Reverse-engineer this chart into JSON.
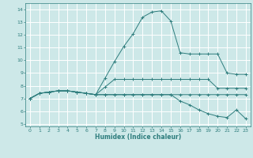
{
  "xlabel": "Humidex (Indice chaleur)",
  "bg_color": "#cde8e8",
  "grid_color": "#ffffff",
  "line_color": "#2e7d7d",
  "xlim": [
    -0.5,
    23.5
  ],
  "ylim": [
    4.8,
    14.5
  ],
  "yticks": [
    5,
    6,
    7,
    8,
    9,
    10,
    11,
    12,
    13,
    14
  ],
  "xticks": [
    0,
    1,
    2,
    3,
    4,
    5,
    6,
    7,
    8,
    9,
    10,
    11,
    12,
    13,
    14,
    15,
    16,
    17,
    18,
    19,
    20,
    21,
    22,
    23
  ],
  "line1_x": [
    0,
    1,
    2,
    3,
    4,
    5,
    6,
    7,
    8,
    9,
    10,
    11,
    12,
    13,
    14,
    15,
    16,
    17,
    18,
    19,
    20,
    21,
    22,
    23
  ],
  "line1_y": [
    7.0,
    7.4,
    7.5,
    7.6,
    7.6,
    7.5,
    7.4,
    7.3,
    8.6,
    9.9,
    11.1,
    12.1,
    13.4,
    13.8,
    13.9,
    13.1,
    10.6,
    10.5,
    10.5,
    10.5,
    10.5,
    9.0,
    8.9,
    8.9
  ],
  "line2_x": [
    0,
    1,
    2,
    3,
    4,
    5,
    6,
    7,
    8,
    9,
    10,
    11,
    12,
    13,
    14,
    15,
    16,
    17,
    18,
    19,
    20,
    21,
    22,
    23
  ],
  "line2_y": [
    7.0,
    7.4,
    7.5,
    7.6,
    7.6,
    7.5,
    7.4,
    7.3,
    7.9,
    8.5,
    8.5,
    8.5,
    8.5,
    8.5,
    8.5,
    8.5,
    8.5,
    8.5,
    8.5,
    8.5,
    7.8,
    7.8,
    7.8,
    7.8
  ],
  "line3_x": [
    0,
    1,
    2,
    3,
    4,
    5,
    6,
    7,
    8,
    9,
    10,
    11,
    12,
    13,
    14,
    15,
    16,
    17,
    18,
    19,
    20,
    21,
    22,
    23
  ],
  "line3_y": [
    7.0,
    7.4,
    7.5,
    7.6,
    7.6,
    7.5,
    7.4,
    7.3,
    7.3,
    7.3,
    7.3,
    7.3,
    7.3,
    7.3,
    7.3,
    7.3,
    7.3,
    7.3,
    7.3,
    7.3,
    7.3,
    7.3,
    7.3,
    7.3
  ],
  "line4_x": [
    0,
    1,
    2,
    3,
    4,
    5,
    6,
    7,
    8,
    9,
    10,
    11,
    12,
    13,
    14,
    15,
    16,
    17,
    18,
    19,
    20,
    21,
    22,
    23
  ],
  "line4_y": [
    7.0,
    7.4,
    7.5,
    7.6,
    7.6,
    7.5,
    7.4,
    7.3,
    7.3,
    7.3,
    7.3,
    7.3,
    7.3,
    7.3,
    7.3,
    7.3,
    6.8,
    6.5,
    6.1,
    5.8,
    5.6,
    5.5,
    6.1,
    5.4
  ]
}
